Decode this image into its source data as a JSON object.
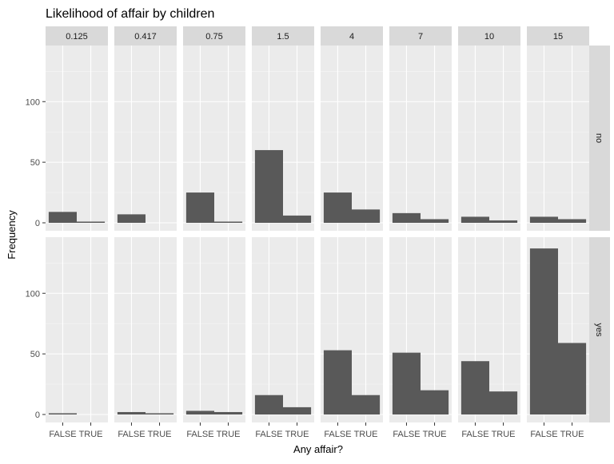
{
  "chart_data": {
    "type": "bar",
    "title": "Likelihood of affair by children",
    "xlabel": "Any affair?",
    "ylabel": "Frequency",
    "categories": [
      "FALSE",
      "TRUE"
    ],
    "facet_columns": [
      "0.125",
      "0.417",
      "0.75",
      "1.5",
      "4",
      "7",
      "10",
      "15"
    ],
    "facet_rows": [
      "no",
      "yes"
    ],
    "ylim": [
      0,
      143
    ],
    "y_ticks": [
      0,
      50,
      100
    ],
    "grid": true,
    "bar_color": "#595959",
    "panel_background": "#ebebeb",
    "strip_background": "#d9d9d9",
    "panels": [
      {
        "row": "no",
        "column": "0.125",
        "values": [
          9,
          1
        ]
      },
      {
        "row": "no",
        "column": "0.417",
        "values": [
          7,
          0
        ]
      },
      {
        "row": "no",
        "column": "0.75",
        "values": [
          25,
          1
        ]
      },
      {
        "row": "no",
        "column": "1.5",
        "values": [
          60,
          6
        ]
      },
      {
        "row": "no",
        "column": "4",
        "values": [
          25,
          11
        ]
      },
      {
        "row": "no",
        "column": "7",
        "values": [
          8,
          3
        ]
      },
      {
        "row": "no",
        "column": "10",
        "values": [
          5,
          2
        ]
      },
      {
        "row": "no",
        "column": "15",
        "values": [
          5,
          3
        ]
      },
      {
        "row": "yes",
        "column": "0.125",
        "values": [
          1,
          0
        ]
      },
      {
        "row": "yes",
        "column": "0.417",
        "values": [
          2,
          1
        ]
      },
      {
        "row": "yes",
        "column": "0.75",
        "values": [
          3,
          2
        ]
      },
      {
        "row": "yes",
        "column": "1.5",
        "values": [
          16,
          6
        ]
      },
      {
        "row": "yes",
        "column": "4",
        "values": [
          53,
          16
        ]
      },
      {
        "row": "yes",
        "column": "7",
        "values": [
          51,
          20
        ]
      },
      {
        "row": "yes",
        "column": "10",
        "values": [
          44,
          19
        ]
      },
      {
        "row": "yes",
        "column": "15",
        "values": [
          137,
          59
        ]
      }
    ]
  }
}
